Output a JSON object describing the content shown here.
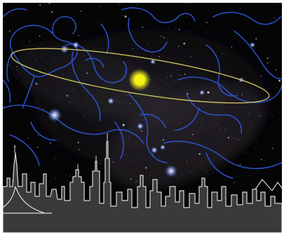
{
  "image": {
    "subject": "night-sky-with-constellations-and-ecliptic-over-city-skyline",
    "elements": [
      "star-field",
      "milky-way-band",
      "constellation-figure-drawings",
      "ecliptic-ellipse",
      "sun",
      "city-skyline-silhouette"
    ]
  },
  "colors": {
    "sky": "#050505",
    "constellation_lines": "#2f56d8",
    "ecliptic": "#c9c05a",
    "sun": "#f5f21a",
    "skyline": "#3a3a3a",
    "skyline_outline": "#d9d9d9",
    "frame": "#ffffff"
  }
}
